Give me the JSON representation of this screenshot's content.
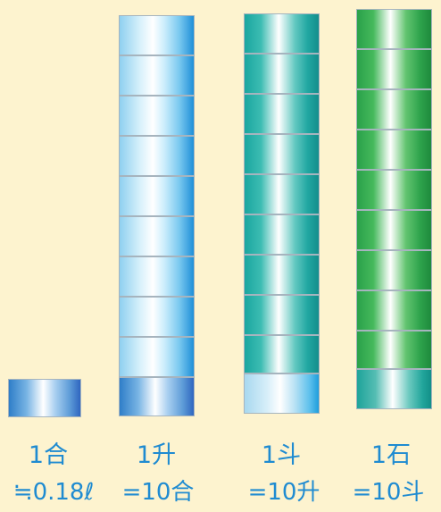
{
  "units": [
    {
      "name": "1合",
      "equivalence": "≒0.18ℓ",
      "segments": 1,
      "color": "#2f7ec8"
    },
    {
      "name": "1升",
      "equivalence": "=10合",
      "segments": 10,
      "color": "#7ccaf0"
    },
    {
      "name": "1斗",
      "equivalence": "=10升",
      "segments": 10,
      "color": "#1aa6a0"
    },
    {
      "name": "1石",
      "equivalence": "=10斗",
      "segments": 10,
      "color": "#2aa14a"
    }
  ],
  "background": "#fdf3cf",
  "text_color": "#1f8bd1"
}
